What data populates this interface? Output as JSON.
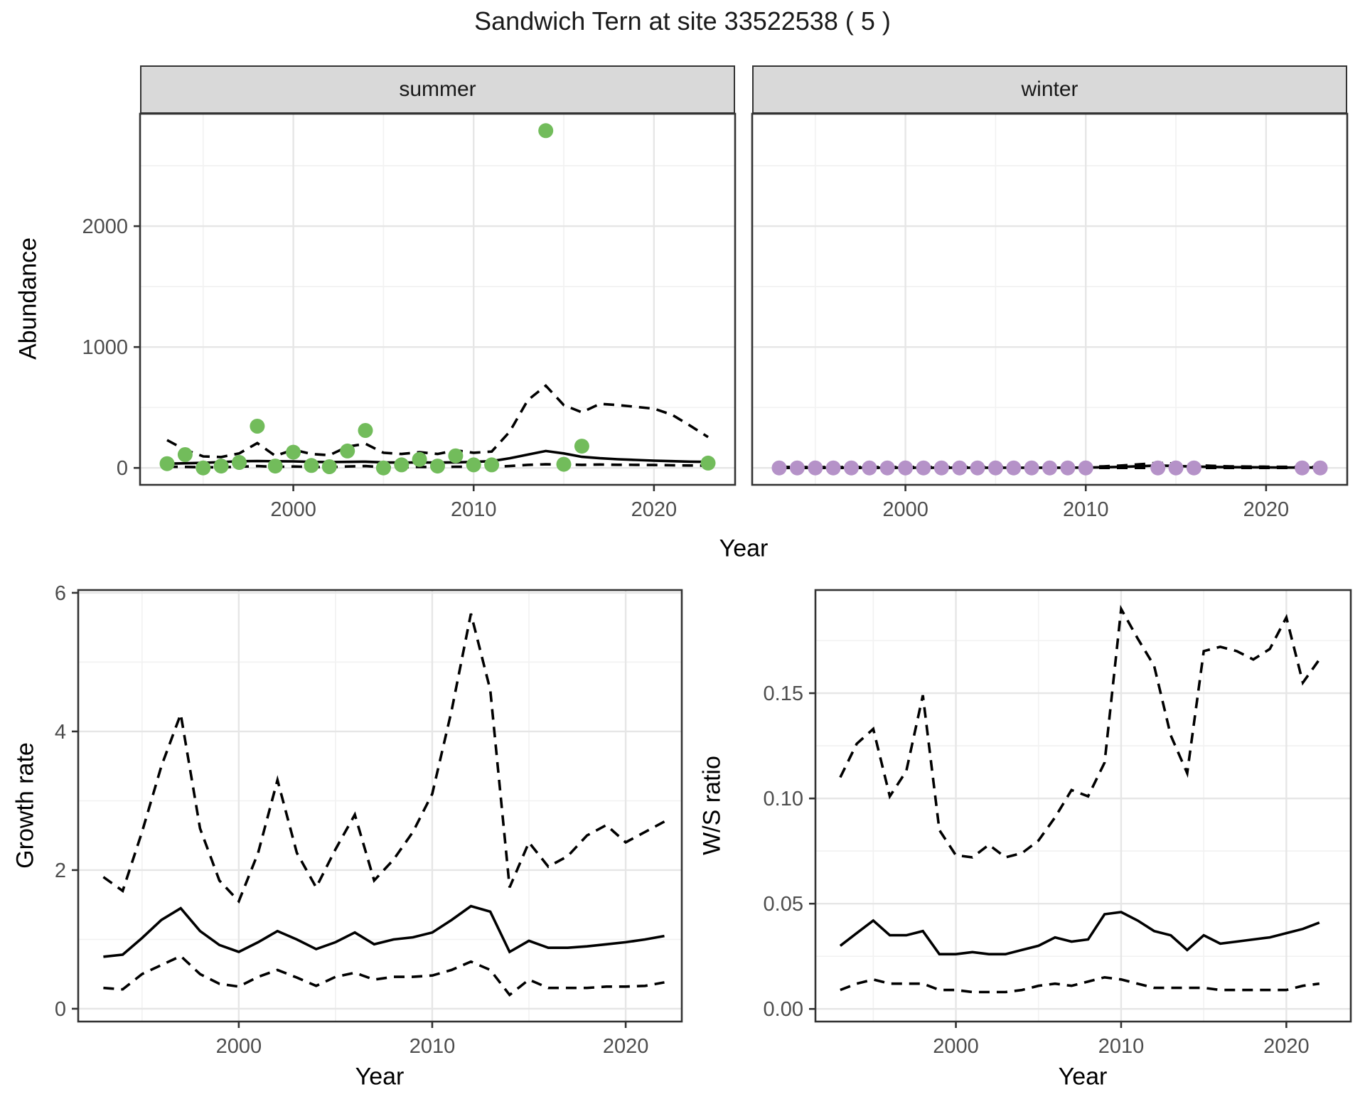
{
  "title": "Sandwich Tern at site 33522538 ( 5 )",
  "colors": {
    "summer_point": "#72bc5b",
    "winter_point": "#b592c8",
    "line": "#000000",
    "panel_border": "#333333",
    "grid_major": "#e6e6e6",
    "grid_minor": "#f2f2f2",
    "strip_fill": "#d9d9d9",
    "tick_label": "#4d4d4d"
  },
  "top_figure": {
    "facets": [
      "summer",
      "winter"
    ],
    "ylabel": "Abundance",
    "xlabel": "Year"
  },
  "bottom_left": {
    "ylabel": "Growth rate",
    "xlabel": "Year"
  },
  "bottom_right": {
    "ylabel": "W/S ratio",
    "xlabel": "Year"
  },
  "chart_data": [
    {
      "type": "scatter",
      "title": "summer",
      "xlabel": "Year",
      "ylabel": "Abundance",
      "xlim": [
        1991.5,
        2024.5
      ],
      "ylim": [
        -140,
        2930
      ],
      "xticks": [
        2000,
        2010,
        2020
      ],
      "xtick_labels": [
        "2000",
        "2010",
        "2020"
      ],
      "xticks_minor": [
        1995,
        2005,
        2015
      ],
      "yticks": [
        0,
        1000,
        2000
      ],
      "ytick_labels": [
        "0",
        "1000",
        "2000"
      ],
      "yticks_minor": [
        500,
        1500,
        2500
      ],
      "grid": true,
      "years": [
        1993,
        1994,
        1995,
        1996,
        1997,
        1998,
        1999,
        2000,
        2001,
        2002,
        2003,
        2004,
        2005,
        2006,
        2007,
        2008,
        2009,
        2010,
        2011,
        2012,
        2013,
        2014,
        2015,
        2016,
        2017,
        2018,
        2019,
        2020,
        2021,
        2022,
        2023
      ],
      "series": [
        {
          "name": "upper_95ci",
          "dashed": true,
          "y": [
            230,
            150,
            95,
            90,
            120,
            205,
            100,
            150,
            115,
            105,
            175,
            200,
            125,
            115,
            130,
            115,
            145,
            125,
            135,
            300,
            560,
            680,
            520,
            460,
            530,
            520,
            505,
            490,
            440,
            350,
            255
          ]
        },
        {
          "name": "fitted_mean",
          "dashed": false,
          "y": [
            35,
            38,
            42,
            48,
            55,
            57,
            55,
            54,
            50,
            48,
            50,
            52,
            46,
            44,
            45,
            44,
            46,
            50,
            56,
            80,
            110,
            140,
            120,
            92,
            80,
            72,
            66,
            60,
            56,
            52,
            50
          ]
        },
        {
          "name": "lower_95ci",
          "dashed": true,
          "y": [
            10,
            8,
            5,
            5,
            10,
            15,
            8,
            12,
            8,
            6,
            12,
            15,
            6,
            6,
            8,
            6,
            10,
            8,
            8,
            15,
            25,
            30,
            28,
            25,
            28,
            26,
            25,
            24,
            22,
            20,
            18
          ]
        }
      ],
      "points": {
        "color": "#72bc5b",
        "x": [
          1993,
          1994,
          1995,
          1996,
          1997,
          1998,
          1999,
          2000,
          2001,
          2002,
          2003,
          2004,
          2005,
          2006,
          2007,
          2008,
          2009,
          2010,
          2011,
          2014,
          2015,
          2016,
          2023
        ],
        "y": [
          35,
          110,
          0,
          15,
          45,
          345,
          15,
          130,
          20,
          10,
          140,
          310,
          0,
          25,
          70,
          15,
          100,
          25,
          25,
          2790,
          30,
          180,
          40
        ]
      }
    },
    {
      "type": "scatter",
      "title": "winter",
      "xlabel": "Year",
      "ylabel": "Abundance",
      "xlim": [
        1991.5,
        2024.5
      ],
      "ylim": [
        -140,
        2930
      ],
      "xticks": [
        2000,
        2010,
        2020
      ],
      "xtick_labels": [
        "2000",
        "2010",
        "2020"
      ],
      "xticks_minor": [
        1995,
        2005,
        2015
      ],
      "yticks": [
        0,
        1000,
        2000
      ],
      "ytick_labels": [],
      "yticks_minor": [
        500,
        1500,
        2500
      ],
      "grid": true,
      "years": [
        1993,
        1994,
        1995,
        1996,
        1997,
        1998,
        1999,
        2000,
        2001,
        2002,
        2003,
        2004,
        2005,
        2006,
        2007,
        2008,
        2009,
        2010,
        2011,
        2012,
        2013,
        2014,
        2015,
        2016,
        2017,
        2018,
        2019,
        2020,
        2021,
        2022,
        2023
      ],
      "series": [
        {
          "name": "upper_95ci",
          "dashed": true,
          "y": [
            8,
            7,
            7,
            7,
            7,
            7,
            7,
            7,
            7,
            7,
            7,
            7,
            7,
            7,
            7,
            7,
            8,
            9,
            13,
            20,
            30,
            42,
            35,
            24,
            17,
            13,
            11,
            10,
            9,
            8,
            8
          ]
        },
        {
          "name": "fitted_mean",
          "dashed": false,
          "y": [
            2,
            2,
            2,
            2,
            2,
            2,
            2,
            2,
            2,
            2,
            2,
            2,
            2,
            2,
            2,
            2,
            2,
            3,
            5,
            9,
            14,
            20,
            16,
            11,
            8,
            6,
            5,
            4,
            3,
            3,
            3
          ]
        },
        {
          "name": "lower_95ci",
          "dashed": true,
          "y": [
            0,
            0,
            0,
            0,
            0,
            0,
            0,
            0,
            0,
            0,
            0,
            0,
            0,
            0,
            0,
            0,
            0,
            0,
            0,
            0,
            0,
            0,
            0,
            0,
            0,
            0,
            0,
            0,
            0,
            0,
            0
          ]
        }
      ],
      "points": {
        "color": "#b592c8",
        "x": [
          1993,
          1994,
          1995,
          1996,
          1997,
          1998,
          1999,
          2000,
          2001,
          2002,
          2003,
          2004,
          2005,
          2006,
          2007,
          2008,
          2009,
          2010,
          2014,
          2015,
          2016,
          2022,
          2023
        ],
        "y": [
          0,
          0,
          0,
          0,
          0,
          0,
          0,
          0,
          0,
          0,
          0,
          0,
          0,
          0,
          0,
          0,
          0,
          0,
          0,
          0,
          0,
          0,
          0
        ]
      }
    },
    {
      "type": "line",
      "title": "Growth rate",
      "xlabel": "Year",
      "ylabel": "Growth rate",
      "xlim": [
        1991.7,
        2022.9
      ],
      "ylim": [
        -0.185,
        6.04
      ],
      "xticks": [
        2000,
        2010,
        2020
      ],
      "xtick_labels": [
        "2000",
        "2010",
        "2020"
      ],
      "xticks_minor": [
        1995,
        2005,
        2015
      ],
      "yticks": [
        0,
        2,
        4,
        6
      ],
      "ytick_labels": [
        "0",
        "2",
        "4",
        "6"
      ],
      "yticks_minor": [
        1,
        3,
        5
      ],
      "grid": true,
      "years": [
        1993,
        1994,
        1995,
        1996,
        1997,
        1998,
        1999,
        2000,
        2001,
        2002,
        2003,
        2004,
        2005,
        2006,
        2007,
        2008,
        2009,
        2010,
        2011,
        2012,
        2013,
        2014,
        2015,
        2016,
        2017,
        2018,
        2019,
        2020,
        2021,
        2022
      ],
      "series": [
        {
          "name": "upper_95ci",
          "dashed": true,
          "y": [
            1.9,
            1.7,
            2.55,
            3.5,
            4.25,
            2.6,
            1.85,
            1.55,
            2.25,
            3.3,
            2.25,
            1.75,
            2.3,
            2.8,
            1.85,
            2.15,
            2.55,
            3.1,
            4.3,
            5.7,
            4.6,
            1.75,
            2.4,
            2.05,
            2.2,
            2.5,
            2.65,
            2.4,
            2.55,
            2.7
          ]
        },
        {
          "name": "mean",
          "dashed": false,
          "y": [
            0.75,
            0.78,
            1.02,
            1.28,
            1.45,
            1.12,
            0.92,
            0.82,
            0.96,
            1.12,
            1.0,
            0.86,
            0.96,
            1.1,
            0.93,
            1.0,
            1.03,
            1.1,
            1.28,
            1.48,
            1.4,
            0.82,
            0.98,
            0.88,
            0.88,
            0.9,
            0.93,
            0.96,
            1.0,
            1.05
          ]
        },
        {
          "name": "lower_95ci",
          "dashed": true,
          "y": [
            0.3,
            0.28,
            0.5,
            0.63,
            0.76,
            0.5,
            0.36,
            0.32,
            0.46,
            0.56,
            0.45,
            0.33,
            0.46,
            0.52,
            0.42,
            0.46,
            0.46,
            0.48,
            0.56,
            0.68,
            0.56,
            0.2,
            0.42,
            0.3,
            0.3,
            0.3,
            0.32,
            0.32,
            0.33,
            0.38
          ]
        }
      ]
    },
    {
      "type": "line",
      "title": "W/S ratio",
      "xlabel": "Year",
      "ylabel": "W/S ratio",
      "xlim": [
        1991.5,
        2023.9
      ],
      "ylim": [
        -0.006,
        0.199
      ],
      "xticks": [
        2000,
        2010,
        2020
      ],
      "xtick_labels": [
        "2000",
        "2010",
        "2020"
      ],
      "xticks_minor": [
        1995,
        2005,
        2015
      ],
      "yticks": [
        0.0,
        0.05,
        0.1,
        0.15
      ],
      "ytick_labels": [
        "0.00",
        "0.05",
        "0.10",
        "0.15"
      ],
      "yticks_minor": [
        0.025,
        0.075,
        0.125,
        0.175
      ],
      "grid": true,
      "years": [
        1993,
        1994,
        1995,
        1996,
        1997,
        1998,
        1999,
        2000,
        2001,
        2002,
        2003,
        2004,
        2005,
        2006,
        2007,
        2008,
        2009,
        2010,
        2011,
        2012,
        2013,
        2014,
        2015,
        2016,
        2017,
        2018,
        2019,
        2020,
        2021,
        2022
      ],
      "series": [
        {
          "name": "upper_95ci",
          "dashed": true,
          "y": [
            0.11,
            0.126,
            0.133,
            0.101,
            0.113,
            0.149,
            0.085,
            0.073,
            0.072,
            0.078,
            0.072,
            0.074,
            0.08,
            0.091,
            0.104,
            0.101,
            0.117,
            0.19,
            0.176,
            0.163,
            0.13,
            0.112,
            0.17,
            0.172,
            0.17,
            0.166,
            0.171,
            0.186,
            0.155,
            0.166
          ]
        },
        {
          "name": "mean",
          "dashed": false,
          "y": [
            0.03,
            0.036,
            0.042,
            0.035,
            0.035,
            0.037,
            0.026,
            0.026,
            0.027,
            0.026,
            0.026,
            0.028,
            0.03,
            0.034,
            0.032,
            0.033,
            0.045,
            0.046,
            0.042,
            0.037,
            0.035,
            0.028,
            0.035,
            0.031,
            0.032,
            0.033,
            0.034,
            0.036,
            0.038,
            0.041
          ]
        },
        {
          "name": "lower_95ci",
          "dashed": true,
          "y": [
            0.009,
            0.012,
            0.014,
            0.012,
            0.012,
            0.012,
            0.009,
            0.009,
            0.008,
            0.008,
            0.008,
            0.009,
            0.011,
            0.012,
            0.011,
            0.013,
            0.015,
            0.014,
            0.012,
            0.01,
            0.01,
            0.01,
            0.01,
            0.009,
            0.009,
            0.009,
            0.009,
            0.009,
            0.011,
            0.012
          ]
        }
      ]
    }
  ]
}
